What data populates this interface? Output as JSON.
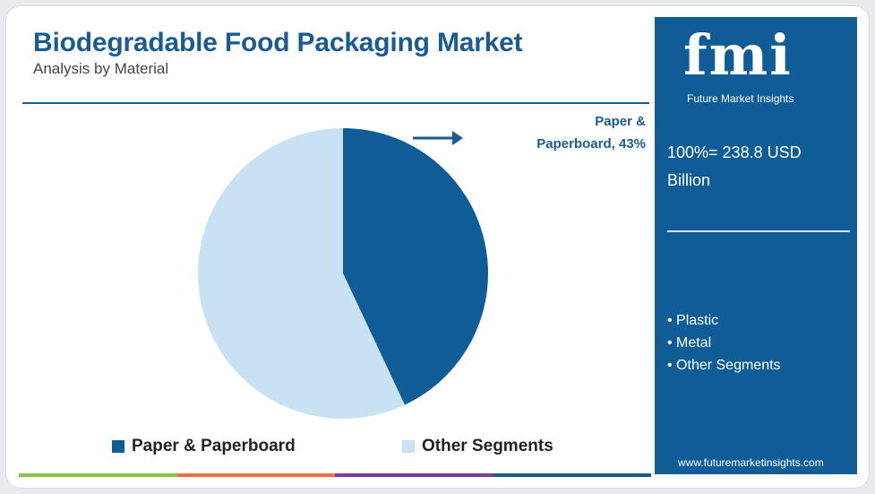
{
  "header": {
    "title": "Biodegradable Food Packaging Market",
    "subtitle": "Analysis by Material"
  },
  "colors": {
    "primary": "#0f5c97",
    "accent_light": "#c8e2f3",
    "title": "#1a5b92",
    "bar": [
      "#8bc34a",
      "#f06f3c",
      "#7a3aa8",
      "#1a5b92"
    ]
  },
  "callout": {
    "line1": "Paper &",
    "line2": "Paperboard, 43%"
  },
  "chart_data": {
    "type": "pie",
    "categories": [
      "Paper & Paperboard",
      "Other Segments"
    ],
    "values": [
      43,
      57
    ],
    "legend_position": "bottom"
  },
  "legend": [
    {
      "label": "Paper & Paperboard",
      "color": "#0f5c97"
    },
    {
      "label": "Other Segments",
      "color": "#c8e2f3"
    }
  ],
  "panel": {
    "logo": "fmi",
    "logo_sub": "Future Market Insights",
    "total_line1": "100%= 238.8 USD",
    "total_line2": "Billion",
    "segments": [
      "Plastic",
      "Metal",
      "Other Segments"
    ],
    "url": "www.futuremarketinsights.com"
  }
}
